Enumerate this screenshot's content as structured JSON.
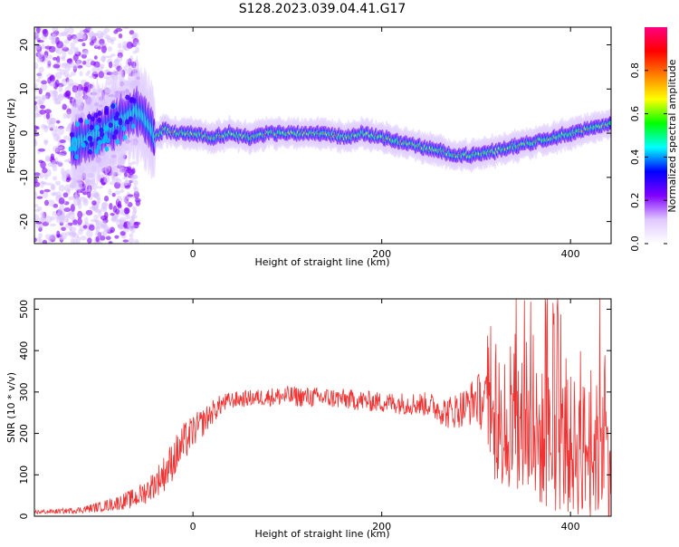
{
  "figure": {
    "title": "S128.2023.039.04.41.G17"
  },
  "chart_data": [
    {
      "type": "heatmap",
      "name": "spectrogram",
      "xlabel": "Height of straight line (km)",
      "ylabel": "Frequency (Hz)",
      "xlim": [
        -168,
        443
      ],
      "ylim": [
        -25,
        24
      ],
      "x_ticks": [
        0,
        200,
        400
      ],
      "y_ticks": [
        -20,
        -10,
        0,
        10,
        20
      ],
      "ridge": {
        "x": [
          -150,
          -130,
          -110,
          -90,
          -75,
          -60,
          -50,
          -40,
          -30,
          -20,
          0,
          20,
          40,
          60,
          80,
          100,
          120,
          140,
          160,
          180,
          200,
          220,
          240,
          260,
          280,
          300,
          320,
          340,
          360,
          380,
          400,
          420,
          443
        ],
        "y": [
          -6,
          -3,
          -1,
          1,
          3,
          5,
          3,
          -1,
          1,
          0,
          0,
          -1,
          0,
          -1,
          0,
          0,
          0,
          0,
          -1,
          0,
          -1,
          -2,
          -3,
          -4,
          -5,
          -5,
          -4,
          -3,
          -2,
          -1,
          0,
          1,
          2
        ]
      },
      "colorbar": {
        "label": "Normalized spectral amplitude",
        "range": [
          0.0,
          1.0
        ],
        "ticks": [
          0.0,
          0.2,
          0.4,
          0.6,
          0.8
        ],
        "tick_labels": [
          "0.0",
          "0.2",
          "0.4",
          "0.6",
          "0.8"
        ],
        "colors": [
          "#ffffff",
          "#e0c8ff",
          "#8000ff",
          "#0000ff",
          "#00ffff",
          "#00ff00",
          "#ffff00",
          "#ff8000",
          "#ff0000",
          "#ff0080"
        ]
      }
    },
    {
      "type": "line",
      "name": "snr",
      "xlabel": "Height of straight line (km)",
      "ylabel": "SNR (10 * v/v)",
      "xlim": [
        -168,
        443
      ],
      "ylim": [
        0,
        525
      ],
      "x_ticks": [
        0,
        200,
        400
      ],
      "y_ticks": [
        0,
        100,
        200,
        300,
        400,
        500
      ],
      "color": "#ee3333",
      "envelope": {
        "x": [
          -168,
          -140,
          -120,
          -100,
          -80,
          -60,
          -50,
          -40,
          -30,
          -20,
          -10,
          0,
          10,
          20,
          30,
          40,
          60,
          80,
          100,
          150,
          200,
          250,
          270,
          290,
          300,
          310,
          320,
          340,
          360,
          380,
          400,
          420,
          443
        ],
        "mean": [
          10,
          12,
          15,
          22,
          32,
          45,
          60,
          80,
          105,
          140,
          175,
          205,
          225,
          250,
          270,
          280,
          285,
          288,
          290,
          285,
          275,
          270,
          250,
          265,
          285,
          270,
          200,
          200,
          190,
          180,
          170,
          160,
          150
        ],
        "spread": [
          5,
          6,
          8,
          12,
          18,
          25,
          30,
          35,
          45,
          50,
          50,
          40,
          35,
          30,
          25,
          20,
          20,
          22,
          25,
          25,
          25,
          30,
          40,
          50,
          60,
          80,
          120,
          150,
          170,
          170,
          170,
          170,
          160
        ]
      }
    }
  ]
}
